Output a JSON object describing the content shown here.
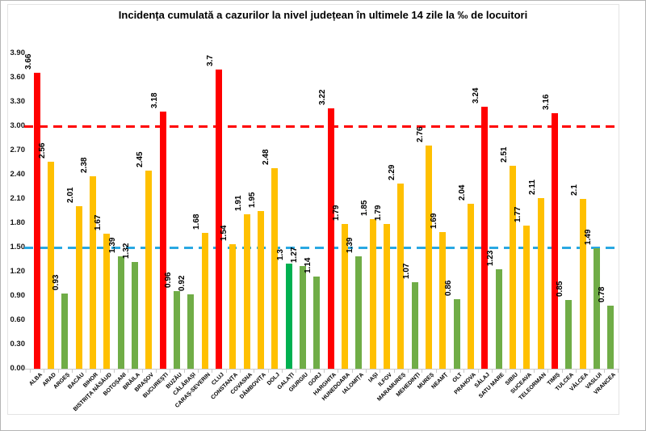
{
  "title": "Incidența cumulată a cazurilor la nivel județean în ultimele 14 zile la ‰ de locuitori",
  "colors": {
    "red": "#ff0000",
    "yellow": "#ffc000",
    "green": "#70ad47",
    "bright_green": "#00b050",
    "threshold_red": "#ff0000",
    "threshold_blue": "#29a8e2",
    "axis": "#c9c9c9"
  },
  "chart_data": {
    "type": "bar",
    "title": "Incidența cumulată a cazurilor la nivel județean în ultimele 14 zile la ‰ de locuitori",
    "xlabel": "",
    "ylabel": "",
    "ylim": [
      0,
      3.9
    ],
    "grid": false,
    "legend_position": "none",
    "yticks": [
      "0.00",
      "0.30",
      "0.60",
      "0.90",
      "1.20",
      "1.50",
      "1.80",
      "2.10",
      "2.40",
      "2.70",
      "3.00",
      "3.30",
      "3.60",
      "3.90"
    ],
    "thresholds": [
      {
        "name": "threshold-line-red",
        "value": 3.0,
        "color": "#ff0000",
        "style": "dashed"
      },
      {
        "name": "threshold-line-blue",
        "value": 1.5,
        "color": "#29a8e2",
        "style": "dashed"
      }
    ],
    "categories": [
      "ALBA",
      "ARAD",
      "ARGEȘ",
      "BACĂU",
      "BIHOR",
      "BISTRIȚA NĂSĂUD",
      "BOTOȘANI",
      "BRĂILA",
      "BRAȘOV",
      "BUCUREȘTI",
      "BUZĂU",
      "CĂLĂRAȘI",
      "CARAȘ-SEVERIN",
      "CLUJ",
      "CONSTANȚA",
      "COVASNA",
      "DÂMBOVIȚA",
      "DOLJ",
      "GALAȚI",
      "GIURGIU",
      "GORJ",
      "HARGHITA",
      "HUNEDOARA",
      "IALOMIȚA",
      "IAȘI",
      "ILFOV",
      "MARAMUREȘ",
      "MEHEDINȚI",
      "MUREȘ",
      "NEAMȚ",
      "OLT",
      "PRAHOVA",
      "SĂLAJ",
      "SATU MARE",
      "SIBIU",
      "SUCEAVA",
      "TELEORMAN",
      "TIMIȘ",
      "TULCEA",
      "VÂLCEA",
      "VASLUI",
      "VRANCEA"
    ],
    "values": [
      3.66,
      2.56,
      0.93,
      2.01,
      2.38,
      1.67,
      1.39,
      1.32,
      2.45,
      3.18,
      0.96,
      0.92,
      1.68,
      3.7,
      1.54,
      1.91,
      1.95,
      2.48,
      1.3,
      1.27,
      1.14,
      3.22,
      1.79,
      1.39,
      1.85,
      1.79,
      2.29,
      1.07,
      2.76,
      1.69,
      0.86,
      2.04,
      3.24,
      1.23,
      2.51,
      1.77,
      2.11,
      3.16,
      0.85,
      2.1,
      1.49,
      0.78
    ],
    "value_labels": [
      "3.66",
      "2.56",
      "0.93",
      "2.01",
      "2.38",
      "1.67",
      "1.39",
      "1.32",
      "2.45",
      "3.18",
      "0.96",
      "0.92",
      "1.68",
      "3.7",
      "1.54",
      "1.91",
      "1.95",
      "2.48",
      "1.3",
      "1.27",
      "1.14",
      "3.22",
      "1.79",
      "1.39",
      "1.85",
      "1.79",
      "2.29",
      "1.07",
      "2.76",
      "1.69",
      "0.86",
      "2.04",
      "3.24",
      "1.23",
      "2.51",
      "1.77",
      "2.11",
      "3.16",
      "0.85",
      "2.1",
      "1.49",
      "0.78"
    ],
    "bar_colors": [
      "red",
      "yellow",
      "green",
      "yellow",
      "yellow",
      "yellow",
      "green",
      "green",
      "yellow",
      "red",
      "green",
      "green",
      "yellow",
      "red",
      "yellow",
      "yellow",
      "yellow",
      "yellow",
      "bright_green",
      "green",
      "green",
      "red",
      "yellow",
      "green",
      "yellow",
      "yellow",
      "yellow",
      "green",
      "yellow",
      "yellow",
      "green",
      "yellow",
      "red",
      "green",
      "yellow",
      "yellow",
      "yellow",
      "red",
      "green",
      "yellow",
      "green",
      "green"
    ]
  }
}
